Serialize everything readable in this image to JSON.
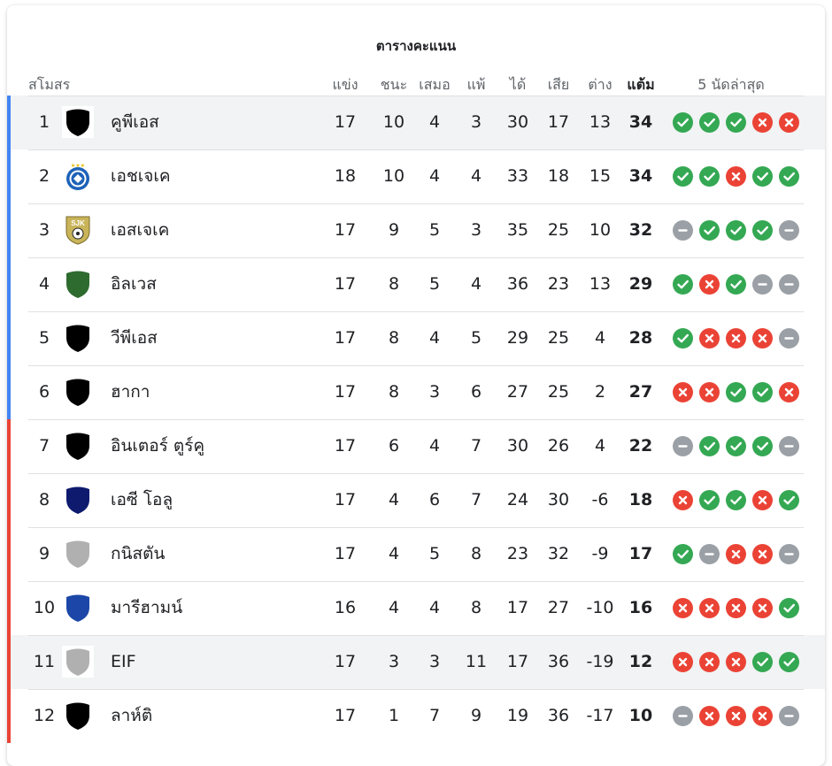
{
  "title": "ตารางคะแนน",
  "headers": {
    "club": "สโมสร",
    "played": "แข่ง",
    "won": "ชนะ",
    "drawn": "เสมอ",
    "lost": "แพ้",
    "gf": "ได้",
    "ga": "เสีย",
    "gd": "ต่าง",
    "pts": "แต้ม",
    "form": "5 นัดล่าสุด"
  },
  "colors": {
    "promotion_bar": "#4285f4",
    "relegation_bar": "#ea4335",
    "win": "#34a853",
    "loss": "#ea4335",
    "draw": "#9aa0a6"
  },
  "rows": [
    {
      "pos": "1",
      "name": "คูพีเอส",
      "played": "17",
      "won": "10",
      "drawn": "4",
      "lost": "3",
      "gf": "30",
      "ga": "17",
      "gd": "13",
      "pts": "34",
      "zone": "blue",
      "logo": "shield",
      "logo_color": "#000000",
      "highlight": true,
      "form": [
        "win",
        "win",
        "win",
        "loss",
        "loss"
      ]
    },
    {
      "pos": "2",
      "name": "เอชเจเค",
      "played": "18",
      "won": "10",
      "drawn": "4",
      "lost": "4",
      "gf": "33",
      "ga": "18",
      "gd": "15",
      "pts": "34",
      "zone": "blue",
      "logo": "hjk-crest",
      "logo_color": "#1d62b8",
      "highlight": false,
      "form": [
        "win",
        "win",
        "loss",
        "win",
        "win"
      ]
    },
    {
      "pos": "3",
      "name": "เอสเจเค",
      "played": "17",
      "won": "9",
      "drawn": "5",
      "lost": "3",
      "gf": "35",
      "ga": "25",
      "gd": "10",
      "pts": "32",
      "zone": "blue",
      "logo": "sjk-crest",
      "logo_color": "#c9b45a",
      "highlight": false,
      "form": [
        "draw",
        "win",
        "win",
        "win",
        "draw"
      ]
    },
    {
      "pos": "4",
      "name": "อิลเวส",
      "played": "17",
      "won": "8",
      "drawn": "5",
      "lost": "4",
      "gf": "36",
      "ga": "23",
      "gd": "13",
      "pts": "29",
      "zone": "blue",
      "logo": "shield",
      "logo_color": "#2e6b2f",
      "highlight": false,
      "form": [
        "win",
        "loss",
        "win",
        "draw",
        "draw"
      ]
    },
    {
      "pos": "5",
      "name": "วีพีเอส",
      "played": "17",
      "won": "8",
      "drawn": "4",
      "lost": "5",
      "gf": "29",
      "ga": "25",
      "gd": "4",
      "pts": "28",
      "zone": "blue",
      "logo": "shield",
      "logo_color": "#000000",
      "highlight": false,
      "form": [
        "win",
        "loss",
        "loss",
        "loss",
        "draw"
      ]
    },
    {
      "pos": "6",
      "name": "ฮากา",
      "played": "17",
      "won": "8",
      "drawn": "3",
      "lost": "6",
      "gf": "27",
      "ga": "25",
      "gd": "2",
      "pts": "27",
      "zone": "blue",
      "logo": "shield",
      "logo_color": "#000000",
      "highlight": false,
      "form": [
        "loss",
        "loss",
        "win",
        "win",
        "loss"
      ]
    },
    {
      "pos": "7",
      "name": "อินเตอร์ ตูร์คู",
      "played": "17",
      "won": "6",
      "drawn": "4",
      "lost": "7",
      "gf": "30",
      "ga": "26",
      "gd": "4",
      "pts": "22",
      "zone": "red",
      "logo": "shield",
      "logo_color": "#000000",
      "highlight": false,
      "form": [
        "draw",
        "win",
        "win",
        "win",
        "draw"
      ]
    },
    {
      "pos": "8",
      "name": "เอซี โอลู",
      "played": "17",
      "won": "4",
      "drawn": "6",
      "lost": "7",
      "gf": "24",
      "ga": "30",
      "gd": "-6",
      "pts": "18",
      "zone": "red",
      "logo": "shield",
      "logo_color": "#0d1a6e",
      "highlight": false,
      "form": [
        "loss",
        "win",
        "win",
        "loss",
        "win"
      ]
    },
    {
      "pos": "9",
      "name": "กนิสตัน",
      "played": "17",
      "won": "4",
      "drawn": "5",
      "lost": "8",
      "gf": "23",
      "ga": "32",
      "gd": "-9",
      "pts": "17",
      "zone": "red",
      "logo": "shield",
      "logo_color": "#b0b0b0",
      "highlight": false,
      "form": [
        "win",
        "draw",
        "loss",
        "loss",
        "draw"
      ]
    },
    {
      "pos": "10",
      "name": "มารีฮามน์",
      "played": "16",
      "won": "4",
      "drawn": "4",
      "lost": "8",
      "gf": "17",
      "ga": "27",
      "gd": "-10",
      "pts": "16",
      "zone": "red",
      "logo": "shield",
      "logo_color": "#1c47a8",
      "highlight": false,
      "form": [
        "loss",
        "loss",
        "loss",
        "loss",
        "win"
      ]
    },
    {
      "pos": "11",
      "name": "EIF",
      "played": "17",
      "won": "3",
      "drawn": "3",
      "lost": "11",
      "gf": "17",
      "ga": "36",
      "gd": "-19",
      "pts": "12",
      "zone": "red",
      "logo": "shield",
      "logo_color": "#b0b0b0",
      "highlight": true,
      "form": [
        "loss",
        "loss",
        "loss",
        "win",
        "win"
      ]
    },
    {
      "pos": "12",
      "name": "ลาห์ติ",
      "played": "17",
      "won": "1",
      "drawn": "7",
      "lost": "9",
      "gf": "19",
      "ga": "36",
      "gd": "-17",
      "pts": "10",
      "zone": "red",
      "logo": "shield",
      "logo_color": "#000000",
      "highlight": false,
      "form": [
        "draw",
        "loss",
        "loss",
        "loss",
        "draw"
      ]
    }
  ]
}
